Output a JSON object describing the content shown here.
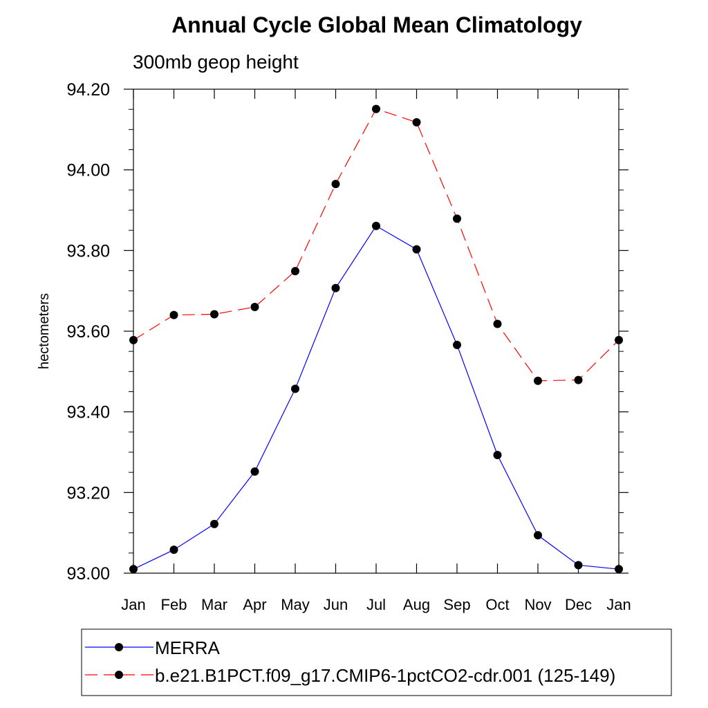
{
  "chart_data": {
    "type": "line",
    "title": "Annual Cycle Global Mean Climatology",
    "subtitle": "300mb geop height",
    "xlabel": "",
    "ylabel": "hectometers",
    "categories": [
      "Jan",
      "Feb",
      "Mar",
      "Apr",
      "May",
      "Jun",
      "Jul",
      "Aug",
      "Sep",
      "Oct",
      "Nov",
      "Dec",
      "Jan"
    ],
    "ylim": [
      93.0,
      94.2
    ],
    "yticks": [
      93.0,
      93.2,
      93.4,
      93.6,
      93.8,
      94.0,
      94.2
    ],
    "ytick_labels": [
      "93.00",
      "93.20",
      "93.40",
      "93.60",
      "93.80",
      "94.00",
      "94.20"
    ],
    "series": [
      {
        "name": "MERRA",
        "color": "#0000ff",
        "dash": "solid",
        "values": [
          93.01,
          93.058,
          93.122,
          93.252,
          93.457,
          93.707,
          93.861,
          93.803,
          93.566,
          93.293,
          93.094,
          93.02,
          93.01
        ]
      },
      {
        "name": "b.e21.B1PCT.f09_g17.CMIP6-1pctCO2-cdr.001 (125-149)",
        "color": "#ff0000",
        "dash": "dashed",
        "values": [
          93.578,
          93.64,
          93.642,
          93.66,
          93.749,
          93.965,
          94.151,
          94.118,
          93.879,
          93.618,
          93.477,
          93.479,
          93.578
        ]
      }
    ],
    "legend": "bottom",
    "grid": false
  }
}
